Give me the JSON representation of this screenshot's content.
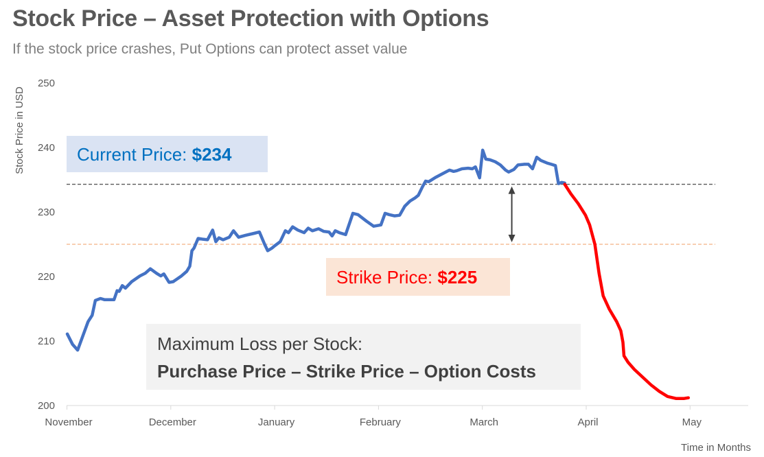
{
  "title": "Stock Price – Asset Protection with Options",
  "subtitle": "If the stock price crashes, Put Options can protect asset value",
  "chart_data": {
    "type": "line",
    "xlabel": "Time in Months",
    "ylabel": "Stock Price in USD",
    "ylim": [
      200,
      250
    ],
    "yticks": [
      200,
      210,
      220,
      230,
      240,
      250
    ],
    "x_categories": [
      "November",
      "December",
      "January",
      "February",
      "March",
      "April",
      "May"
    ],
    "grid": false,
    "series": [
      {
        "color": "#4472C4",
        "points": [
          [
            0.0,
            211.1
          ],
          [
            0.05,
            209.5
          ],
          [
            0.1,
            208.6
          ],
          [
            0.15,
            210.8
          ],
          [
            0.2,
            213.0
          ],
          [
            0.24,
            214.0
          ],
          [
            0.27,
            216.3
          ],
          [
            0.32,
            216.6
          ],
          [
            0.36,
            216.4
          ],
          [
            0.4,
            216.4
          ],
          [
            0.45,
            216.4
          ],
          [
            0.48,
            217.8
          ],
          [
            0.5,
            217.7
          ],
          [
            0.53,
            218.6
          ],
          [
            0.56,
            218.2
          ],
          [
            0.62,
            219.2
          ],
          [
            0.7,
            220.1
          ],
          [
            0.75,
            220.5
          ],
          [
            0.8,
            221.2
          ],
          [
            0.86,
            220.5
          ],
          [
            0.9,
            220.1
          ],
          [
            0.93,
            220.4
          ],
          [
            0.98,
            219.1
          ],
          [
            1.02,
            219.2
          ],
          [
            1.1,
            220.1
          ],
          [
            1.15,
            220.8
          ],
          [
            1.18,
            221.6
          ],
          [
            1.2,
            224.0
          ],
          [
            1.22,
            224.4
          ],
          [
            1.26,
            225.9
          ],
          [
            1.3,
            225.8
          ],
          [
            1.35,
            225.7
          ],
          [
            1.4,
            227.2
          ],
          [
            1.43,
            225.4
          ],
          [
            1.46,
            226.0
          ],
          [
            1.5,
            225.7
          ],
          [
            1.56,
            226.1
          ],
          [
            1.6,
            227.1
          ],
          [
            1.65,
            226.1
          ],
          [
            1.72,
            226.4
          ],
          [
            1.8,
            226.7
          ],
          [
            1.85,
            226.9
          ],
          [
            1.9,
            225.0
          ],
          [
            1.93,
            224.0
          ],
          [
            1.97,
            224.4
          ],
          [
            2.0,
            224.8
          ],
          [
            2.05,
            225.4
          ],
          [
            2.1,
            227.1
          ],
          [
            2.13,
            226.8
          ],
          [
            2.17,
            227.7
          ],
          [
            2.22,
            227.2
          ],
          [
            2.28,
            226.8
          ],
          [
            2.32,
            227.5
          ],
          [
            2.36,
            227.1
          ],
          [
            2.42,
            227.4
          ],
          [
            2.47,
            227.0
          ],
          [
            2.52,
            226.9
          ],
          [
            2.55,
            226.3
          ],
          [
            2.58,
            227.1
          ],
          [
            2.62,
            226.8
          ],
          [
            2.68,
            226.5
          ],
          [
            2.75,
            229.8
          ],
          [
            2.8,
            229.6
          ],
          [
            2.88,
            228.6
          ],
          [
            2.95,
            227.8
          ],
          [
            3.02,
            228.0
          ],
          [
            3.06,
            229.8
          ],
          [
            3.1,
            229.6
          ],
          [
            3.15,
            229.4
          ],
          [
            3.2,
            229.5
          ],
          [
            3.25,
            230.9
          ],
          [
            3.3,
            231.7
          ],
          [
            3.35,
            232.2
          ],
          [
            3.38,
            232.6
          ],
          [
            3.42,
            233.9
          ],
          [
            3.45,
            234.8
          ],
          [
            3.48,
            234.7
          ],
          [
            3.55,
            235.4
          ],
          [
            3.62,
            236.0
          ],
          [
            3.68,
            236.5
          ],
          [
            3.72,
            236.3
          ],
          [
            3.75,
            236.4
          ],
          [
            3.8,
            236.7
          ],
          [
            3.86,
            236.8
          ],
          [
            3.9,
            236.7
          ],
          [
            3.93,
            237.0
          ],
          [
            3.97,
            235.3
          ],
          [
            4.0,
            239.6
          ],
          [
            4.03,
            238.2
          ],
          [
            4.07,
            238.1
          ],
          [
            4.12,
            237.8
          ],
          [
            4.17,
            237.3
          ],
          [
            4.22,
            236.5
          ],
          [
            4.25,
            236.2
          ],
          [
            4.3,
            236.6
          ],
          [
            4.34,
            237.3
          ],
          [
            4.4,
            237.4
          ],
          [
            4.44,
            237.4
          ],
          [
            4.48,
            236.7
          ],
          [
            4.52,
            238.5
          ],
          [
            4.56,
            238.0
          ],
          [
            4.62,
            237.6
          ],
          [
            4.66,
            237.4
          ],
          [
            4.7,
            237.2
          ],
          [
            4.73,
            234.4
          ],
          [
            4.76,
            234.6
          ],
          [
            4.79,
            234.5
          ]
        ]
      },
      {
        "color": "#FF0000",
        "points": [
          [
            4.79,
            234.3
          ],
          [
            4.85,
            232.8
          ],
          [
            4.92,
            231.3
          ],
          [
            4.99,
            229.5
          ],
          [
            5.03,
            228.0
          ],
          [
            5.08,
            225.0
          ],
          [
            5.12,
            220.5
          ],
          [
            5.16,
            217.0
          ],
          [
            5.22,
            214.9
          ],
          [
            5.29,
            213.0
          ],
          [
            5.33,
            211.6
          ],
          [
            5.35,
            209.8
          ],
          [
            5.36,
            207.7
          ],
          [
            5.4,
            206.7
          ],
          [
            5.46,
            205.6
          ],
          [
            5.54,
            204.4
          ],
          [
            5.62,
            203.2
          ],
          [
            5.7,
            202.2
          ],
          [
            5.78,
            201.4
          ],
          [
            5.86,
            201.1
          ],
          [
            5.94,
            201.1
          ],
          [
            5.98,
            201.2
          ]
        ]
      }
    ],
    "reference_lines": [
      {
        "y": 234.3,
        "color": "#595959",
        "style": "dashed"
      },
      {
        "y": 225,
        "color": "#F4B183",
        "style": "dashed"
      }
    ],
    "arrow": {
      "x": 4.28,
      "from": 234.3,
      "to": 225
    },
    "annotations": {
      "current": {
        "label": "Current Price: ",
        "value": "$234",
        "color": "#0070C0",
        "bg": "#DAE3F3"
      },
      "strike": {
        "label": "Strike Price: ",
        "value": "$225",
        "color": "#FF0000",
        "bg": "#FBE5D6"
      },
      "loss": {
        "line1": "Maximum Loss per Stock:",
        "line2": "Purchase Price – Strike Price – Option Costs",
        "bg": "#F2F2F2"
      }
    }
  }
}
